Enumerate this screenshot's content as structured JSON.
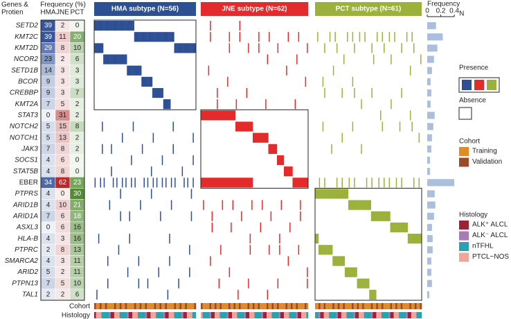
{
  "header": {
    "genes_label": [
      "Genes &",
      "Protien"
    ],
    "frequency_label": "Frequency (%)"
  },
  "columns": [
    "HMA",
    "JNE",
    "PCT"
  ],
  "subtypes": [
    {
      "label": "HMA subtype (N=56)",
      "n": 56,
      "color": "#2d4f94"
    },
    {
      "label": "JNE subtype (N=62)",
      "n": 62,
      "color": "#e32b2b"
    },
    {
      "label": "PCT subtype (N=61)",
      "n": 61,
      "color": "#9bb13a"
    }
  ],
  "rows": [
    {
      "gene": "SETD2",
      "italic": true,
      "values": [
        39,
        2,
        0
      ],
      "frequency": 0.13,
      "group": 0
    },
    {
      "gene": "KMT2C",
      "italic": true,
      "values": [
        39,
        11,
        20
      ],
      "frequency": 0.23,
      "group": 0
    },
    {
      "gene": "KMT2D",
      "italic": true,
      "values": [
        29,
        8,
        10
      ],
      "frequency": 0.15,
      "group": 0
    },
    {
      "gene": "NCOR2",
      "italic": true,
      "values": [
        23,
        2,
        6
      ],
      "frequency": 0.1,
      "group": 0
    },
    {
      "gene": "SETD1B",
      "italic": true,
      "values": [
        14,
        3,
        3
      ],
      "frequency": 0.07,
      "group": 0
    },
    {
      "gene": "BCOR",
      "italic": true,
      "values": [
        9,
        3,
        3
      ],
      "frequency": 0.05,
      "group": 0
    },
    {
      "gene": "CREBBP",
      "italic": true,
      "values": [
        9,
        3,
        7
      ],
      "frequency": 0.06,
      "group": 0
    },
    {
      "gene": "KMT2A",
      "italic": true,
      "values": [
        7,
        5,
        2
      ],
      "frequency": 0.05,
      "group": 0
    },
    {
      "gene": "STAT3",
      "italic": true,
      "values": [
        0,
        31,
        2
      ],
      "frequency": 0.11,
      "group": 1
    },
    {
      "gene": "NOTCH2",
      "italic": true,
      "values": [
        5,
        15,
        8
      ],
      "frequency": 0.09,
      "group": 1
    },
    {
      "gene": "NOTCH1",
      "italic": true,
      "values": [
        5,
        13,
        2
      ],
      "frequency": 0.07,
      "group": 1
    },
    {
      "gene": "JAK3",
      "italic": true,
      "values": [
        7,
        8,
        2
      ],
      "frequency": 0.06,
      "group": 1
    },
    {
      "gene": "SOCS1",
      "italic": true,
      "values": [
        4,
        6,
        0
      ],
      "frequency": 0.04,
      "group": 1
    },
    {
      "gene": "STAT5B",
      "italic": true,
      "values": [
        4,
        8,
        0
      ],
      "frequency": 0.04,
      "group": 1
    },
    {
      "gene": "EBER",
      "italic": false,
      "values": [
        34,
        62,
        23
      ],
      "frequency": 0.4,
      "group": 1
    },
    {
      "gene": "PTPRS",
      "italic": true,
      "values": [
        4,
        0,
        30
      ],
      "frequency": 0.11,
      "group": 2
    },
    {
      "gene": "ARID1B",
      "italic": true,
      "values": [
        4,
        10,
        21
      ],
      "frequency": 0.12,
      "group": 2
    },
    {
      "gene": "ARID1A",
      "italic": true,
      "values": [
        7,
        6,
        18
      ],
      "frequency": 0.1,
      "group": 2
    },
    {
      "gene": "ASXL3",
      "italic": true,
      "values": [
        0,
        6,
        16
      ],
      "frequency": 0.07,
      "group": 2
    },
    {
      "gene": "HLA-B",
      "italic": true,
      "values": [
        4,
        3,
        16
      ],
      "frequency": 0.08,
      "group": 2
    },
    {
      "gene": "PTPRC",
      "italic": true,
      "values": [
        2,
        8,
        13
      ],
      "frequency": 0.08,
      "group": 2
    },
    {
      "gene": "SMARCA2",
      "italic": true,
      "values": [
        4,
        3,
        11
      ],
      "frequency": 0.06,
      "group": 2
    },
    {
      "gene": "ARID2",
      "italic": true,
      "values": [
        5,
        2,
        11
      ],
      "frequency": 0.06,
      "group": 2
    },
    {
      "gene": "PTPN13",
      "italic": true,
      "values": [
        7,
        5,
        10
      ],
      "frequency": 0.07,
      "group": 2
    },
    {
      "gene": "TAL1",
      "italic": true,
      "values": [
        2,
        2,
        6
      ],
      "frequency": 0.03,
      "group": 2
    }
  ],
  "frequency_axis": {
    "title": "Frequency",
    "xlim": [
      0,
      0.45
    ],
    "xticks": [
      0,
      0.2,
      0.4
    ],
    "end_label": "N",
    "color": "#a9bfdd"
  },
  "track_labels": [
    "Cohort",
    "Histology"
  ],
  "legend": {
    "presence": "Presence",
    "absence": "Absence",
    "cohort": {
      "title": "Cohort",
      "items": [
        {
          "label": "Training",
          "color": "#e08a2b"
        },
        {
          "label": "Validation",
          "color": "#9c4a2c"
        }
      ]
    },
    "histology": {
      "title": "Histology",
      "items": [
        {
          "label": "ALK⁺ ALCL",
          "color": "#9b2335"
        },
        {
          "label": "ALK⁻ ALCL",
          "color": "#a77bb5"
        },
        {
          "label": "nTFHL",
          "color": "#2aa1b0"
        },
        {
          "label": "PTCL−NOS",
          "color": "#f2a39a"
        }
      ]
    }
  }
}
